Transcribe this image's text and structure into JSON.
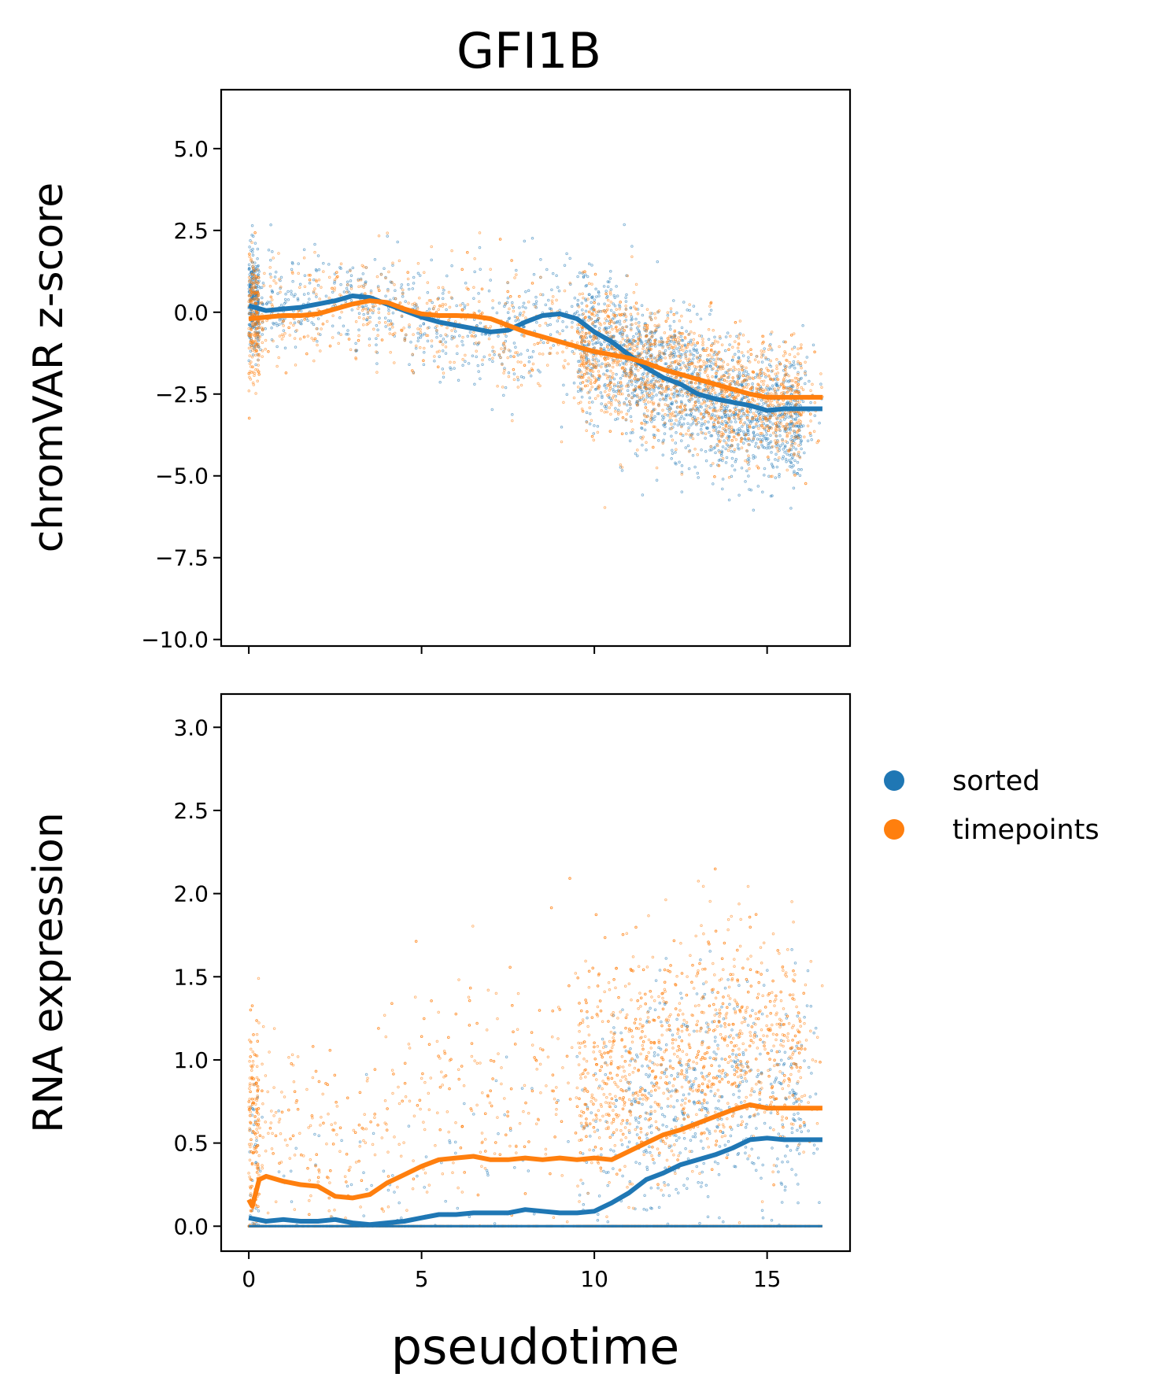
{
  "figure": {
    "title": "GFI1B",
    "xlabel": "pseudotime"
  },
  "colors": {
    "sorted": "#1f77b4",
    "timepoints": "#ff7f0e"
  },
  "legend": {
    "placement": "right of lower panel",
    "entries": [
      "sorted",
      "timepoints"
    ]
  },
  "chart_data": [
    {
      "type": "scatter",
      "title": "GFI1B",
      "xlabel": "",
      "ylabel": "chromVAR z-score",
      "xlim": [
        -0.8,
        17.4
      ],
      "ylim": [
        -10.2,
        6.8
      ],
      "xticks": [
        0,
        5,
        10,
        15
      ],
      "xtick_labels_visible": false,
      "yticks": [
        5.0,
        2.5,
        0.0,
        -2.5,
        -5.0,
        -7.5,
        -10.0
      ],
      "ytick_labels": [
        "5.0",
        "2.5",
        "0.0",
        "−2.5",
        "−5.0",
        "−7.5",
        "−10.0"
      ],
      "grid": false,
      "series": [
        {
          "name": "sorted",
          "trend": [
            [
              0,
              0.2
            ],
            [
              0.5,
              0.05
            ],
            [
              1,
              0.1
            ],
            [
              1.5,
              0.15
            ],
            [
              2,
              0.25
            ],
            [
              2.5,
              0.35
            ],
            [
              3,
              0.5
            ],
            [
              3.5,
              0.45
            ],
            [
              4,
              0.25
            ],
            [
              4.5,
              0.05
            ],
            [
              5,
              -0.15
            ],
            [
              5.5,
              -0.3
            ],
            [
              6,
              -0.4
            ],
            [
              6.5,
              -0.5
            ],
            [
              7,
              -0.6
            ],
            [
              7.5,
              -0.55
            ],
            [
              8,
              -0.3
            ],
            [
              8.5,
              -0.1
            ],
            [
              9,
              -0.05
            ],
            [
              9.5,
              -0.2
            ],
            [
              10,
              -0.6
            ],
            [
              10.5,
              -0.9
            ],
            [
              11,
              -1.3
            ],
            [
              11.5,
              -1.7
            ],
            [
              12,
              -2.0
            ],
            [
              12.5,
              -2.2
            ],
            [
              13,
              -2.5
            ],
            [
              13.5,
              -2.65
            ],
            [
              14,
              -2.75
            ],
            [
              14.5,
              -2.85
            ],
            [
              15,
              -3.0
            ],
            [
              15.5,
              -2.95
            ],
            [
              16,
              -2.95
            ],
            [
              16.6,
              -2.95
            ]
          ],
          "cloud": [
            [
              0,
              0.3,
              1.1
            ],
            [
              1,
              0.4,
              1.0
            ],
            [
              2,
              0.5,
              1.0
            ],
            [
              3,
              0.3,
              1.1
            ],
            [
              4,
              0.2,
              1.1
            ],
            [
              5,
              -0.3,
              1.1
            ],
            [
              6,
              -0.5,
              1.1
            ],
            [
              7,
              -0.6,
              1.2
            ],
            [
              8,
              -0.4,
              1.3
            ],
            [
              9,
              -0.2,
              1.4
            ],
            [
              10,
              -0.8,
              1.4
            ],
            [
              11,
              -1.4,
              1.4
            ],
            [
              12,
              -2.0,
              1.4
            ],
            [
              13,
              -2.5,
              1.4
            ],
            [
              14,
              -3.0,
              1.4
            ],
            [
              15,
              -3.3,
              1.3
            ],
            [
              16,
              -3.2,
              1.3
            ],
            [
              16.5,
              -3.2,
              1.2
            ]
          ]
        },
        {
          "name": "timepoints",
          "trend": [
            [
              0,
              -0.2
            ],
            [
              0.5,
              -0.15
            ],
            [
              1,
              -0.1
            ],
            [
              1.5,
              -0.1
            ],
            [
              2,
              -0.05
            ],
            [
              2.5,
              0.1
            ],
            [
              3,
              0.25
            ],
            [
              3.5,
              0.35
            ],
            [
              4,
              0.3
            ],
            [
              4.5,
              0.1
            ],
            [
              5,
              -0.05
            ],
            [
              5.5,
              -0.1
            ],
            [
              6,
              -0.1
            ],
            [
              6.5,
              -0.12
            ],
            [
              7,
              -0.2
            ],
            [
              7.5,
              -0.4
            ],
            [
              8,
              -0.6
            ],
            [
              8.5,
              -0.75
            ],
            [
              9,
              -0.9
            ],
            [
              9.5,
              -1.05
            ],
            [
              10,
              -1.2
            ],
            [
              10.5,
              -1.3
            ],
            [
              11,
              -1.4
            ],
            [
              11.5,
              -1.55
            ],
            [
              12,
              -1.75
            ],
            [
              12.5,
              -1.9
            ],
            [
              13,
              -2.05
            ],
            [
              13.5,
              -2.2
            ],
            [
              14,
              -2.35
            ],
            [
              14.5,
              -2.5
            ],
            [
              15,
              -2.6
            ],
            [
              15.5,
              -2.6
            ],
            [
              16,
              -2.6
            ],
            [
              16.6,
              -2.6
            ]
          ],
          "cloud": [
            [
              0,
              -0.3,
              1.3
            ],
            [
              1,
              0.0,
              1.1
            ],
            [
              2,
              0.1,
              1.1
            ],
            [
              3,
              0.2,
              1.2
            ],
            [
              4,
              0.1,
              1.2
            ],
            [
              5,
              -0.1,
              1.2
            ],
            [
              6,
              -0.2,
              1.2
            ],
            [
              7,
              -0.4,
              1.3
            ],
            [
              8,
              -0.7,
              1.3
            ],
            [
              9,
              -0.9,
              1.3
            ],
            [
              10,
              -1.2,
              1.3
            ],
            [
              11,
              -1.5,
              1.3
            ],
            [
              12,
              -1.8,
              1.3
            ],
            [
              13,
              -2.1,
              1.3
            ],
            [
              14,
              -2.5,
              1.3
            ],
            [
              15,
              -2.7,
              1.3
            ],
            [
              16,
              -2.8,
              1.2
            ],
            [
              16.5,
              -2.8,
              1.1
            ]
          ]
        }
      ]
    },
    {
      "type": "scatter",
      "xlabel": "pseudotime",
      "ylabel": "RNA expression",
      "xlim": [
        -0.8,
        17.4
      ],
      "ylim": [
        -0.15,
        3.2
      ],
      "xticks": [
        0,
        5,
        10,
        15
      ],
      "xtick_labels": [
        "0",
        "5",
        "10",
        "15"
      ],
      "yticks": [
        3.0,
        2.5,
        2.0,
        1.5,
        1.0,
        0.5,
        0.0
      ],
      "ytick_labels": [
        "3.0",
        "2.5",
        "2.0",
        "1.5",
        "1.0",
        "0.5",
        "0.0"
      ],
      "grid": false,
      "series": [
        {
          "name": "sorted",
          "trend": [
            [
              0,
              0.05
            ],
            [
              0.5,
              0.03
            ],
            [
              1,
              0.04
            ],
            [
              1.5,
              0.03
            ],
            [
              2,
              0.03
            ],
            [
              2.5,
              0.04
            ],
            [
              3,
              0.02
            ],
            [
              3.5,
              0.01
            ],
            [
              4,
              0.02
            ],
            [
              4.5,
              0.03
            ],
            [
              5,
              0.05
            ],
            [
              5.5,
              0.07
            ],
            [
              6,
              0.07
            ],
            [
              6.5,
              0.08
            ],
            [
              7,
              0.08
            ],
            [
              7.5,
              0.08
            ],
            [
              8,
              0.1
            ],
            [
              8.5,
              0.09
            ],
            [
              9,
              0.08
            ],
            [
              9.5,
              0.08
            ],
            [
              10,
              0.09
            ],
            [
              10.5,
              0.14
            ],
            [
              11,
              0.2
            ],
            [
              11.5,
              0.28
            ],
            [
              12,
              0.32
            ],
            [
              12.5,
              0.37
            ],
            [
              13,
              0.4
            ],
            [
              13.5,
              0.43
            ],
            [
              14,
              0.47
            ],
            [
              14.5,
              0.52
            ],
            [
              15,
              0.53
            ],
            [
              15.5,
              0.52
            ],
            [
              16,
              0.52
            ],
            [
              16.6,
              0.52
            ]
          ],
          "cloud": [
            [
              0,
              0.3,
              0.4
            ],
            [
              2,
              0.3,
              0.35
            ],
            [
              4,
              0.3,
              0.35
            ],
            [
              6,
              0.35,
              0.4
            ],
            [
              8,
              0.4,
              0.4
            ],
            [
              10,
              0.5,
              0.45
            ],
            [
              11,
              0.6,
              0.45
            ],
            [
              12,
              0.7,
              0.45
            ],
            [
              13,
              0.75,
              0.45
            ],
            [
              14,
              0.8,
              0.45
            ],
            [
              15,
              0.85,
              0.45
            ],
            [
              16,
              0.8,
              0.4
            ],
            [
              16.5,
              0.8,
              0.35
            ]
          ]
        },
        {
          "name": "timepoints",
          "trend": [
            [
              0,
              0.16
            ],
            [
              0.1,
              0.12
            ],
            [
              0.3,
              0.28
            ],
            [
              0.5,
              0.3
            ],
            [
              1,
              0.27
            ],
            [
              1.5,
              0.25
            ],
            [
              2,
              0.24
            ],
            [
              2.5,
              0.18
            ],
            [
              3,
              0.17
            ],
            [
              3.5,
              0.19
            ],
            [
              4,
              0.26
            ],
            [
              4.5,
              0.31
            ],
            [
              5,
              0.36
            ],
            [
              5.5,
              0.4
            ],
            [
              6,
              0.41
            ],
            [
              6.5,
              0.42
            ],
            [
              7,
              0.4
            ],
            [
              7.5,
              0.4
            ],
            [
              8,
              0.41
            ],
            [
              8.5,
              0.4
            ],
            [
              9,
              0.41
            ],
            [
              9.5,
              0.4
            ],
            [
              10,
              0.41
            ],
            [
              10.5,
              0.4
            ],
            [
              11,
              0.45
            ],
            [
              11.5,
              0.5
            ],
            [
              12,
              0.55
            ],
            [
              12.5,
              0.58
            ],
            [
              13,
              0.62
            ],
            [
              13.5,
              0.66
            ],
            [
              14,
              0.7
            ],
            [
              14.5,
              0.73
            ],
            [
              15,
              0.71
            ],
            [
              15.5,
              0.71
            ],
            [
              16,
              0.71
            ],
            [
              16.6,
              0.71
            ]
          ],
          "cloud": [
            [
              0,
              0.6,
              0.45
            ],
            [
              1,
              0.6,
              0.35
            ],
            [
              2,
              0.55,
              0.35
            ],
            [
              3,
              0.4,
              0.3
            ],
            [
              4,
              0.6,
              0.4
            ],
            [
              5,
              0.85,
              0.45
            ],
            [
              6,
              0.9,
              0.45
            ],
            [
              7,
              0.85,
              0.45
            ],
            [
              8,
              0.8,
              0.45
            ],
            [
              9,
              0.8,
              0.45
            ],
            [
              10,
              0.85,
              0.45
            ],
            [
              11,
              0.95,
              0.45
            ],
            [
              12,
              1.0,
              0.45
            ],
            [
              13,
              1.05,
              0.45
            ],
            [
              14,
              1.1,
              0.45
            ],
            [
              15,
              1.1,
              0.45
            ],
            [
              16,
              1.0,
              0.45
            ],
            [
              16.5,
              1.0,
              0.4
            ]
          ]
        }
      ]
    }
  ]
}
